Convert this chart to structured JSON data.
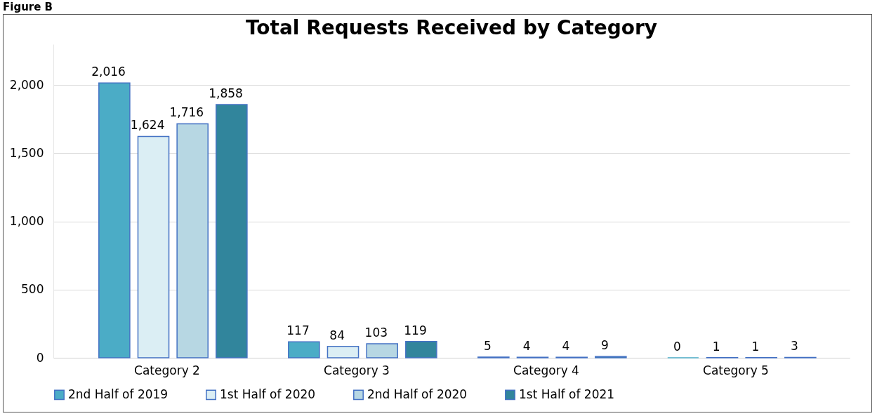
{
  "chart_data": {
    "type": "bar",
    "title": "Total Requests Received by Category",
    "annotations": [
      "Figure B"
    ],
    "categories": [
      "Category 2",
      "Category 3",
      "Category 4",
      "Category 5"
    ],
    "series": [
      {
        "name": "2nd Half of 2019",
        "color": "#4bacc6",
        "values": [
          2016,
          117,
          5,
          0
        ],
        "value_labels": [
          "2,016",
          "117",
          "5",
          "0"
        ]
      },
      {
        "name": "1st Half of 2020",
        "color": "#dbeef4",
        "values": [
          1624,
          84,
          4,
          1
        ],
        "value_labels": [
          "1,624",
          "84",
          "4",
          "1"
        ]
      },
      {
        "name": "2nd Half of 2020",
        "color": "#b7d7e3",
        "values": [
          1716,
          103,
          4,
          1
        ],
        "value_labels": [
          "1,716",
          "103",
          "4",
          "1"
        ]
      },
      {
        "name": "1st Half of 2021",
        "color": "#31859c",
        "values": [
          1858,
          119,
          9,
          3
        ],
        "value_labels": [
          "1,858",
          "119",
          "9",
          "3"
        ]
      }
    ],
    "ylim": [
      0,
      2300
    ],
    "yticks": [
      0,
      {
        "value": 500,
        "label": "500"
      },
      {
        "value": 1000,
        "label": "1,000"
      },
      {
        "value": 1500,
        "label": "1,500"
      },
      {
        "value": 2000,
        "label": "2,000"
      }
    ],
    "grid": "y",
    "legend": "bottom"
  }
}
